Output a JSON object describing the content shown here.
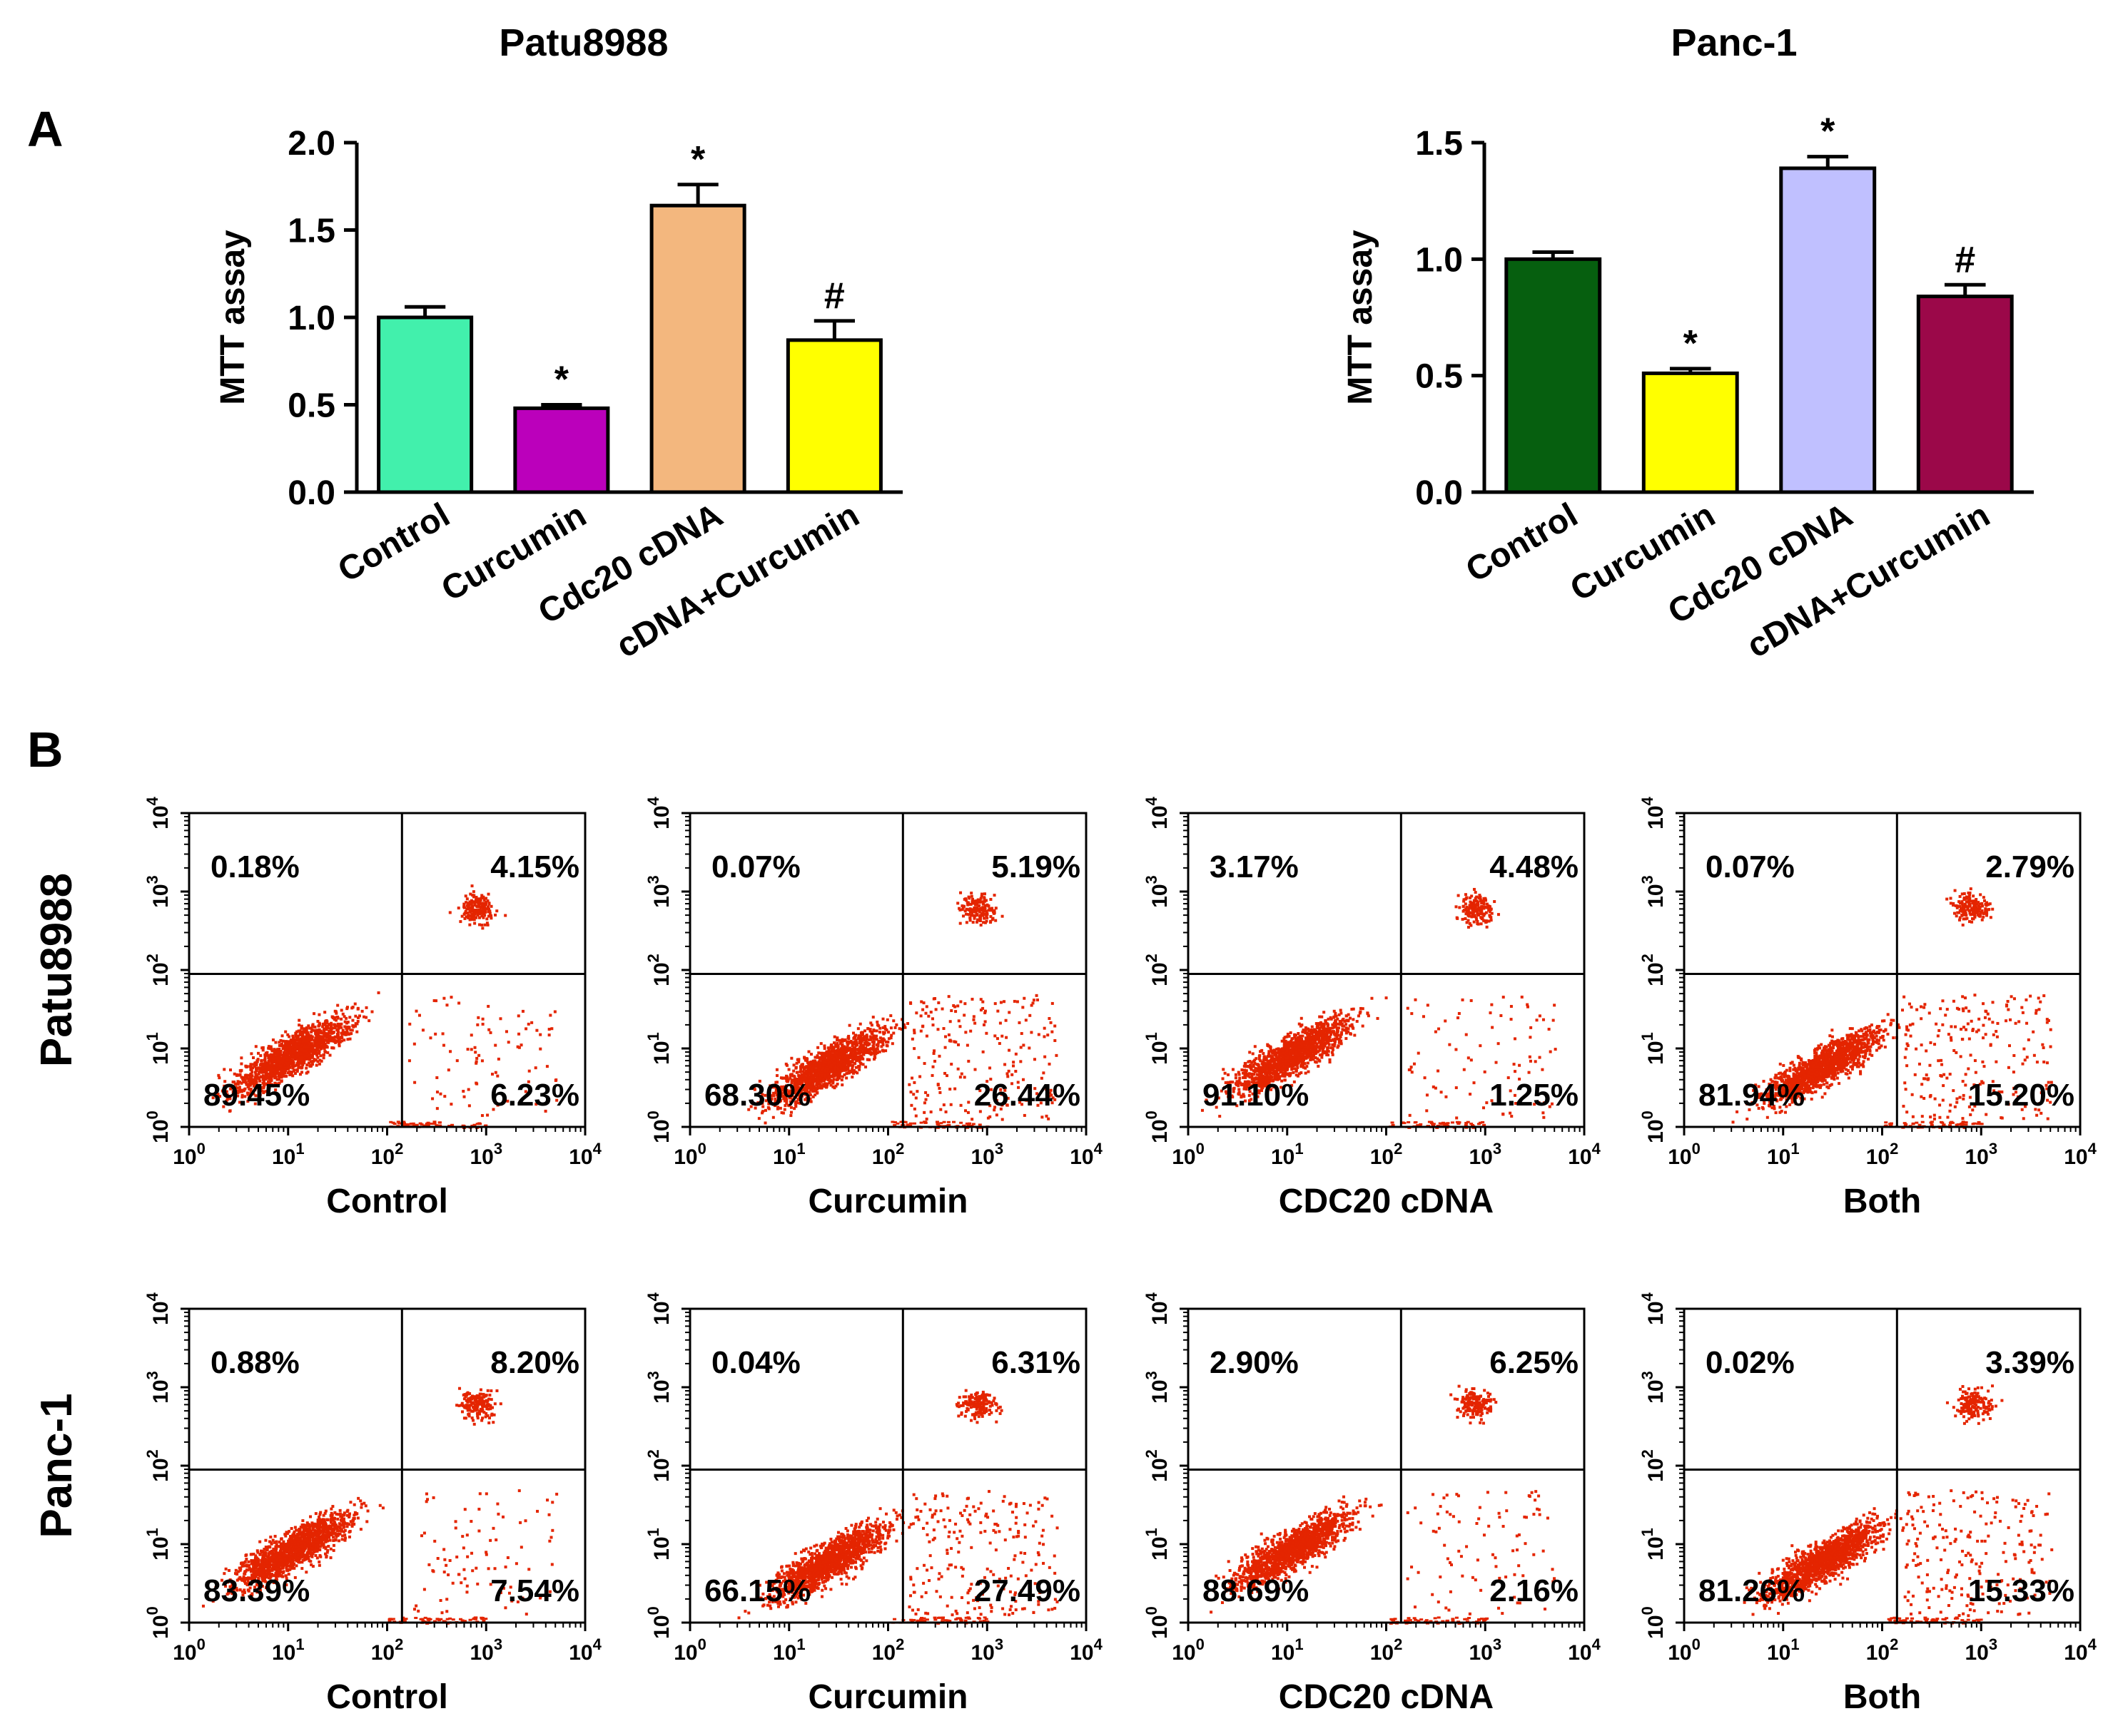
{
  "panel_labels": {
    "a": "A",
    "b": "B"
  },
  "chart_data": [
    {
      "type": "bar",
      "title": "Patu8988",
      "ylabel": "MTT  assay",
      "ylim": [
        0,
        2.0
      ],
      "yticks": [
        "0.0",
        "0.5",
        "1.0",
        "1.5",
        "2.0"
      ],
      "ytick_values": [
        0,
        0.5,
        1.0,
        1.5,
        2.0
      ],
      "categories": [
        "Control",
        "Curcumin",
        "Cdc20 cDNA",
        "cDNA+Curcumin"
      ],
      "values": [
        1.0,
        0.48,
        1.64,
        0.87
      ],
      "errors": [
        0.06,
        0.02,
        0.12,
        0.11
      ],
      "annotations": [
        "",
        "*",
        "*",
        "#"
      ],
      "colors": [
        "#42f0ac",
        "#bb00bb",
        "#f3b77e",
        "#ffff00"
      ]
    },
    {
      "type": "bar",
      "title": "Panc-1",
      "ylabel": "MTT  assay",
      "ylim": [
        0,
        1.5
      ],
      "yticks": [
        "0.0",
        "0.5",
        "1.0",
        "1.5"
      ],
      "ytick_values": [
        0,
        0.5,
        1.0,
        1.5
      ],
      "categories": [
        "Control",
        "Curcumin",
        "Cdc20 cDNA",
        "cDNA+Curcumin"
      ],
      "values": [
        1.0,
        0.51,
        1.39,
        0.84
      ],
      "errors": [
        0.03,
        0.02,
        0.05,
        0.05
      ],
      "annotations": [
        "",
        "*",
        "*",
        "#"
      ],
      "colors": [
        "#065f0f",
        "#ffff00",
        "#c0c0ff",
        "#9b0849"
      ],
      "tick_label": "0.5"
    },
    {
      "type": "scatter",
      "subtype": "flow-cytometry-quadrant-plots",
      "axis_scale": "log",
      "axis_range": [
        1,
        10000
      ],
      "tick_exponents": [
        "0",
        "1",
        "2",
        "3",
        "4"
      ],
      "tick_base": "10",
      "rows": [
        {
          "label": "Patu8988",
          "plots": [
            {
              "name": "Control",
              "quadrants": {
                "ul": "0.18%",
                "ur": "4.15%",
                "ll": "89.45%",
                "lr": "6.23%"
              }
            },
            {
              "name": "Curcumin",
              "quadrants": {
                "ul": "0.07%",
                "ur": "5.19%",
                "ll": "68.30%",
                "lr": "26.44%"
              }
            },
            {
              "name": "CDC20   cDNA",
              "quadrants": {
                "ul": "3.17%",
                "ur": "4.48%",
                "ll": "91.10%",
                "lr": "1.25%"
              }
            },
            {
              "name": "Both",
              "quadrants": {
                "ul": "0.07%",
                "ur": "2.79%",
                "ll": "81.94%",
                "lr": "15.20%"
              }
            }
          ]
        },
        {
          "label": "Panc-1",
          "plots": [
            {
              "name": "Control",
              "quadrants": {
                "ul": "0.88%",
                "ur": "8.20%",
                "ll": "83.39%",
                "lr": "7.54%"
              }
            },
            {
              "name": "Curcumin",
              "quadrants": {
                "ul": "0.04%",
                "ur": "6.31%",
                "ll": "66.15%",
                "lr": "27.49%"
              }
            },
            {
              "name": "CDC20   cDNA",
              "quadrants": {
                "ul": "2.90%",
                "ur": "6.25%",
                "ll": "88.69%",
                "lr": "2.16%"
              }
            },
            {
              "name": "Both",
              "quadrants": {
                "ul": "0.02%",
                "ur": "3.39%",
                "ll": "81.26%",
                "lr": "15.33%"
              }
            }
          ]
        }
      ],
      "dot_color": "#e42500"
    }
  ]
}
